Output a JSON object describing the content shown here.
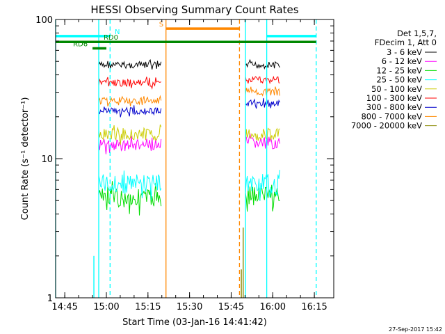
{
  "chart_data": {
    "type": "line",
    "title": "HESSI Observing Summary Count Rates",
    "xlabel": "Start Time (03-Jan-16 14:41:42)",
    "ylabel": "Count Rate (s⁻¹ detector⁻¹)",
    "x_scale": "time",
    "y_scale": "log",
    "xlim": [
      "14:41:42",
      "16:22:00"
    ],
    "ylim": [
      1,
      100
    ],
    "x_ticks": [
      "14:45",
      "15:00",
      "15:15",
      "15:30",
      "15:45",
      "16:00",
      "16:15"
    ],
    "y_ticks": [
      {
        "value": 1,
        "label": "1"
      },
      {
        "value": 10,
        "label": "10"
      },
      {
        "value": 100,
        "label": "100"
      }
    ],
    "legend_header": [
      "Det 1,5,7,",
      "FDecim 1, Att 0"
    ],
    "data_segments": [
      {
        "start": "14:57:15",
        "end": "15:19:50"
      },
      {
        "start": "15:50:10",
        "end": "16:02:40"
      }
    ],
    "series": [
      {
        "name": "3 - 6 keV",
        "color": "#000000",
        "values": [
          47,
          47
        ]
      },
      {
        "name": "6 - 12 keV",
        "color": "#ff00ff",
        "values": [
          12.5,
          13
        ]
      },
      {
        "name": "12 - 25 keV",
        "color": "#00dd00",
        "values": [
          5.2,
          5.5
        ]
      },
      {
        "name": "25 - 50 keV",
        "color": "#00ffff",
        "values": [
          6.6,
          6.6
        ]
      },
      {
        "name": "50 - 100 keV",
        "color": "#cccc00",
        "values": [
          15,
          15
        ]
      },
      {
        "name": "100 - 300 keV",
        "color": "#ff0000",
        "values": [
          35,
          37
        ]
      },
      {
        "name": "300 - 800 keV",
        "color": "#0000cc",
        "values": [
          22,
          25
        ]
      },
      {
        "name": "800 - 7000 keV",
        "color": "#ff8800",
        "values": [
          26,
          30
        ]
      },
      {
        "name": "7000 - 20000 keV",
        "color": "#888800",
        "values": [
          1,
          1
        ]
      }
    ],
    "vertical_lines": [
      {
        "time": "14:41:42",
        "color": "#00ffff",
        "style": "solid"
      },
      {
        "time": "14:57:15",
        "color": "#00ffff",
        "style": "solid"
      },
      {
        "time": "15:01:20",
        "color": "#00ffff",
        "style": "dashed"
      },
      {
        "time": "15:21:30",
        "color": "#ff8800",
        "style": "solid"
      },
      {
        "time": "15:48:00",
        "color": "#ff8800",
        "style": "dashed"
      },
      {
        "time": "15:50:10",
        "color": "#00ffff",
        "style": "solid"
      },
      {
        "time": "15:57:50",
        "color": "#00ffff",
        "style": "solid"
      },
      {
        "time": "16:15:40",
        "color": "#00ffff",
        "style": "dashed"
      }
    ],
    "status_bars": [
      {
        "label": "N",
        "color": "#00ffff",
        "segments": [
          [
            "14:41:42",
            "15:01:20"
          ],
          [
            "15:57:50",
            "16:15:40"
          ]
        ],
        "level": 76,
        "label_at": "15:03:00"
      },
      {
        "label": "S",
        "color": "#ff8800",
        "segments": [
          [
            "15:21:30",
            "15:48:00"
          ]
        ],
        "level": 86,
        "label_at": "15:19:00"
      },
      {
        "label": "RD0",
        "color": "#008800",
        "segments": [
          [
            "14:41:42",
            "16:15:40"
          ]
        ],
        "level": 69,
        "label_at": "14:59:00"
      },
      {
        "label": "RD6",
        "color": "#008800",
        "segments": [
          [
            "14:55:00",
            "15:00:00"
          ]
        ],
        "level": 62,
        "label_at": "14:48:00"
      }
    ],
    "spikes": [
      {
        "time": "14:55:30",
        "value": 2.0,
        "color": "#00ffff"
      },
      {
        "time": "15:49:20",
        "value": 3.2,
        "color": "#888800"
      },
      {
        "time": "15:48:40",
        "value": 1.6,
        "color": "#888800"
      }
    ]
  },
  "footer_timestamp": "27-Sep-2017 15:42"
}
